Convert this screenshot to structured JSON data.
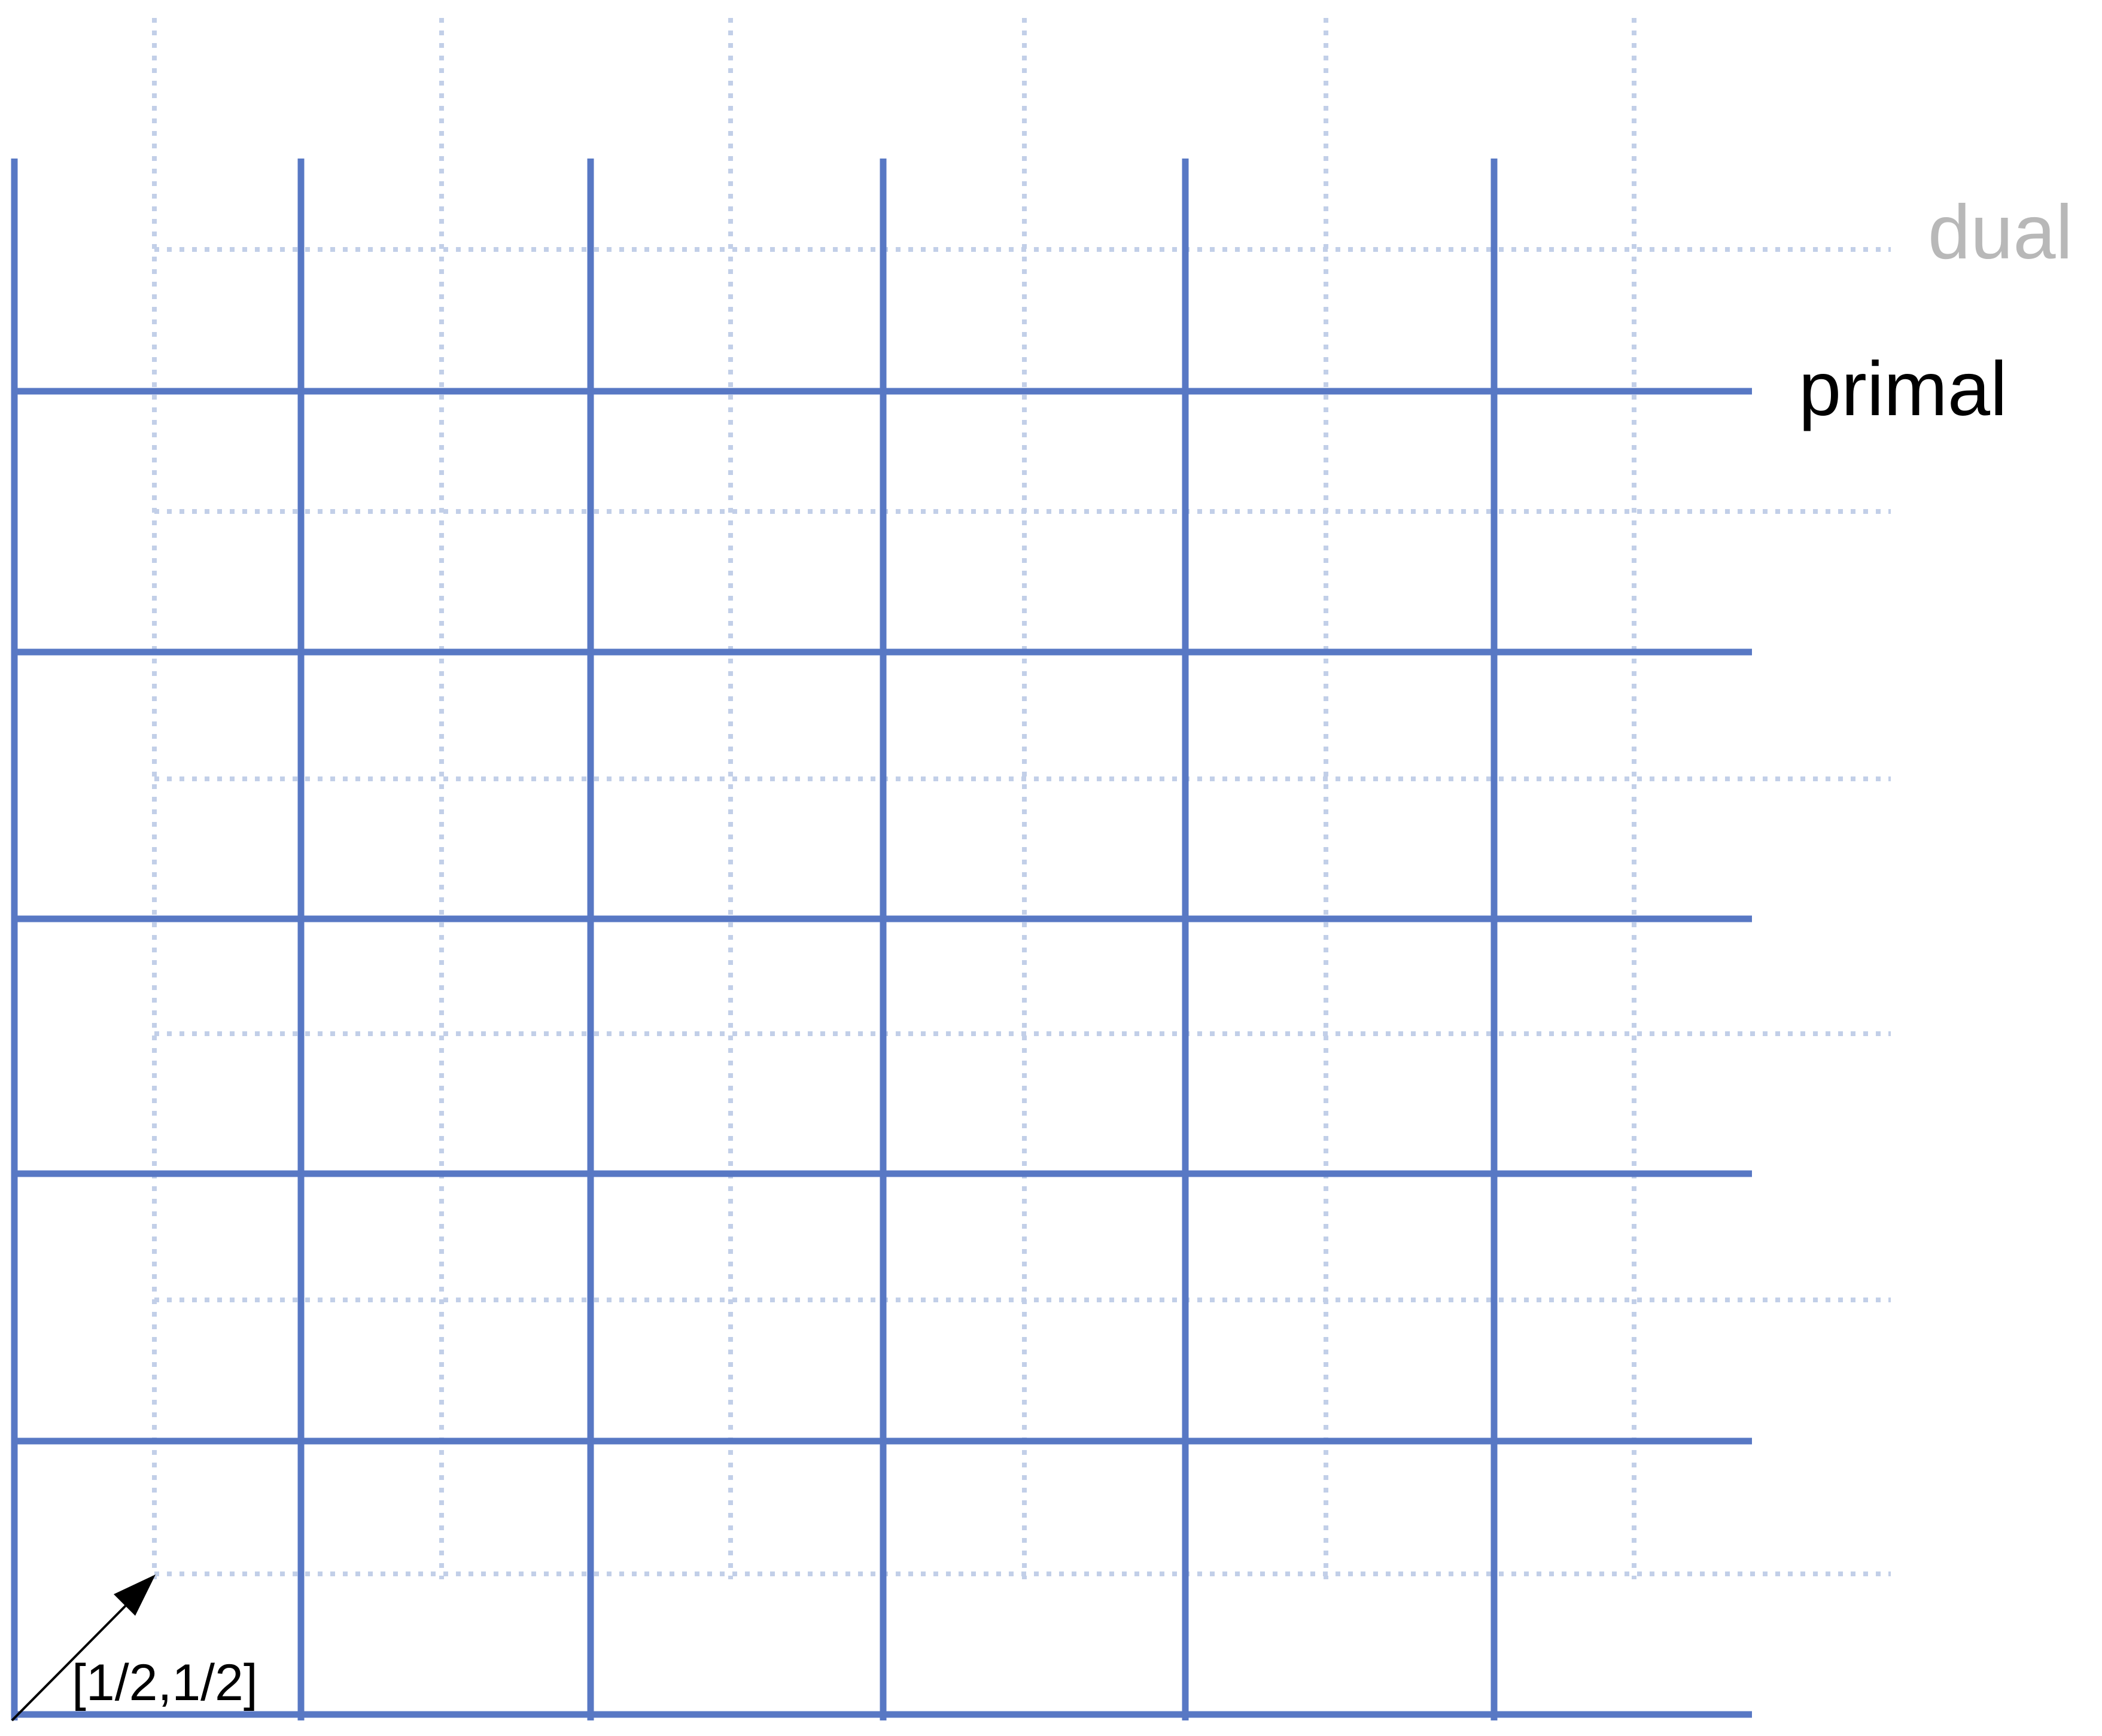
{
  "labels": {
    "dual": "dual",
    "primal": "primal",
    "shift": "[1/2,1/2]"
  },
  "colors": {
    "primal": "#5878c4",
    "dual": "#c2cfe8",
    "dual_label": "#b8b8b8",
    "primal_label": "#000000",
    "arrow": "#000000"
  }
}
